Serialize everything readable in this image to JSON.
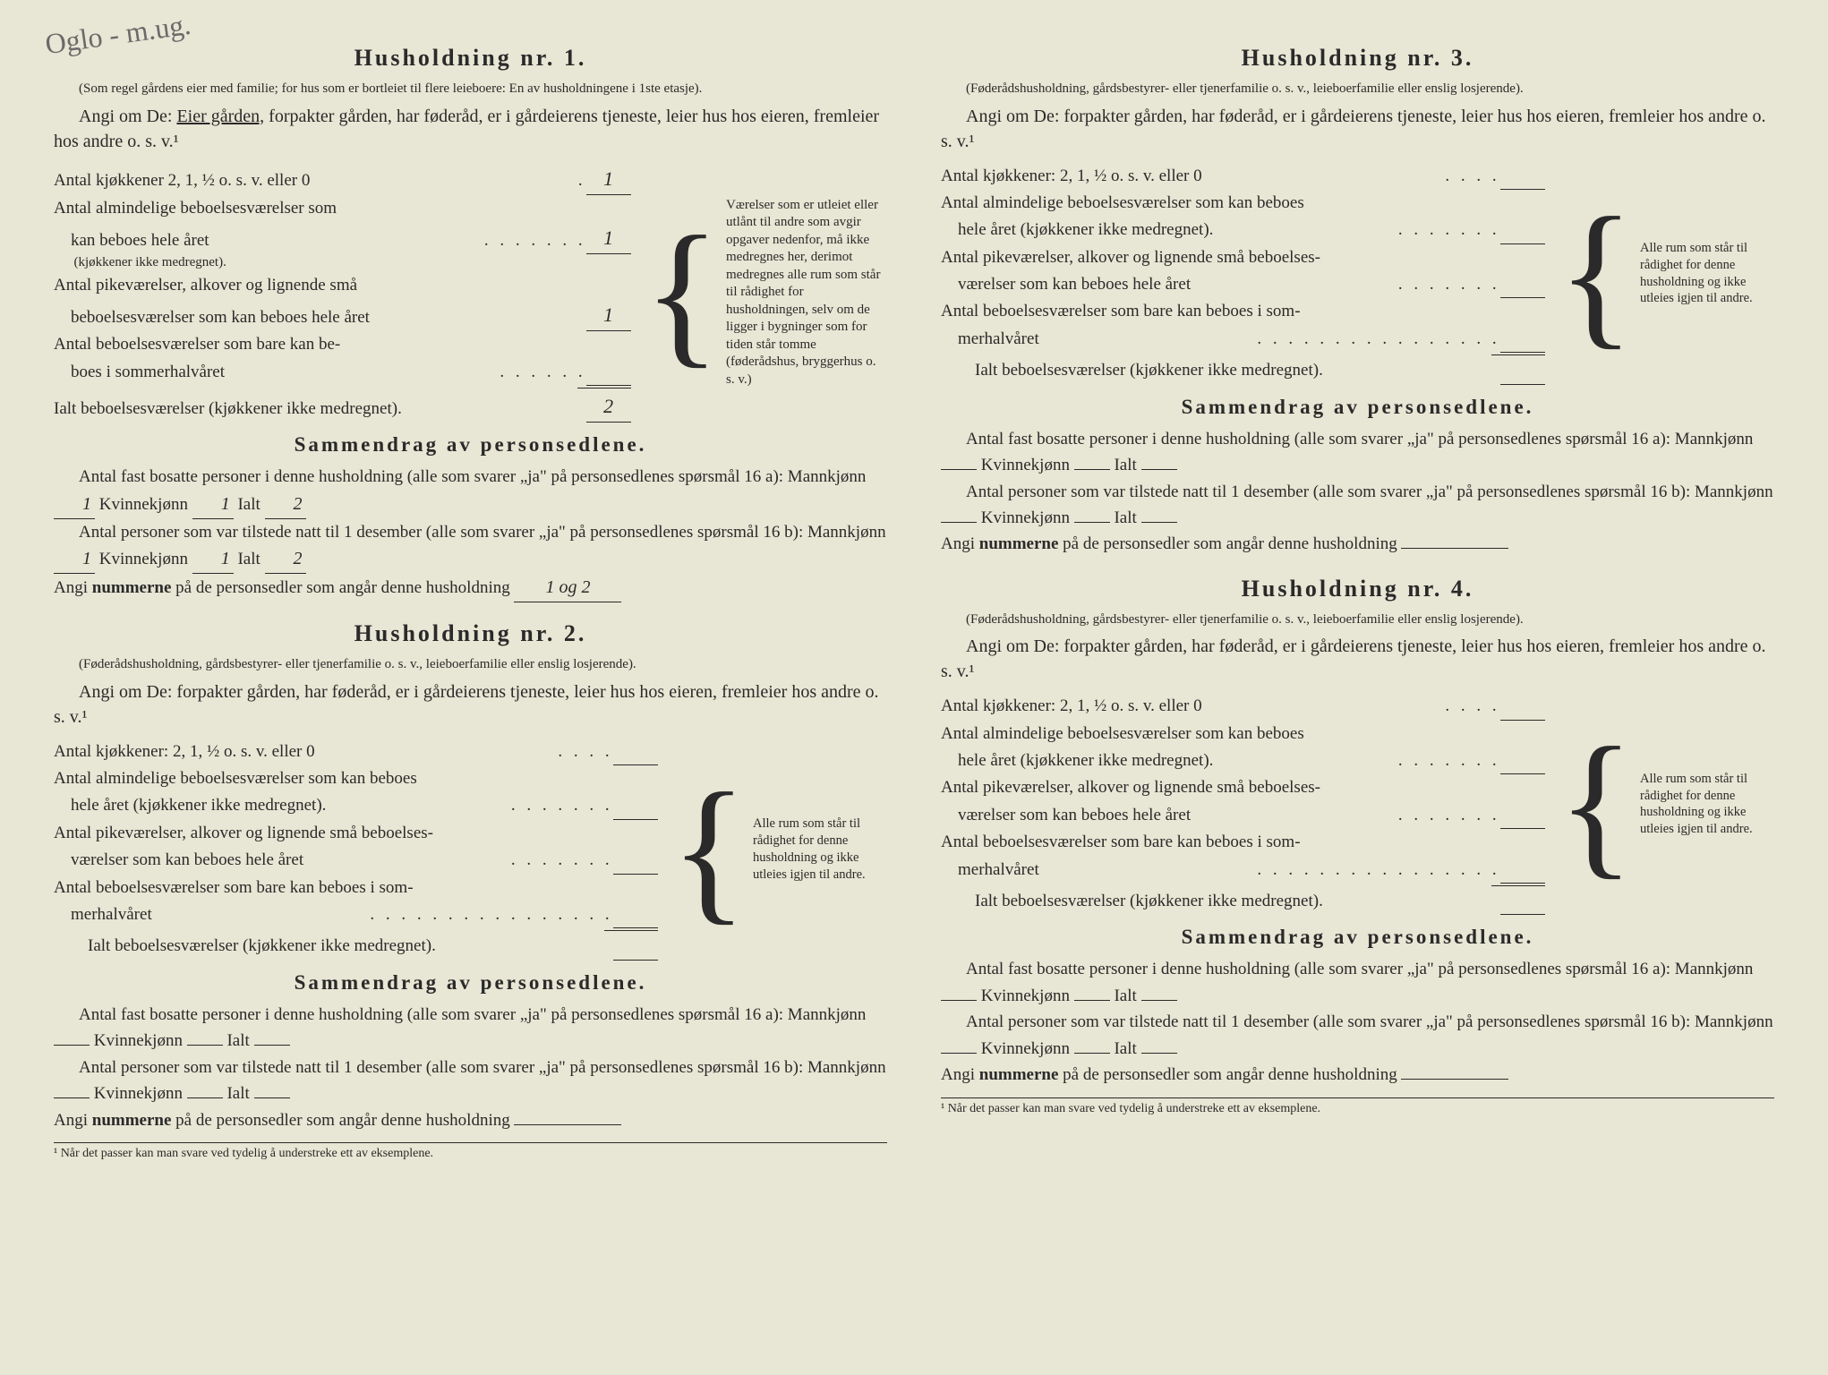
{
  "handwriting_top": "Oglo - m.ug.",
  "footnote": "¹ Når det passer kan man svare ved tydelig å understreke ett av eksemplene.",
  "hh1": {
    "title": "Husholdning nr. 1.",
    "sub": "(Som regel gårdens eier med familie; for hus som er bortleiet til flere leieboere: En av husholdningene i 1ste etasje).",
    "angi": "Angi om De: ",
    "angi_u": "Eier gården,",
    "angi_rest": " forpakter gården, har føderåd, er i gårdeierens tjeneste, leier hus hos eieren, fremleier hos andre o. s. v.¹",
    "l1": "Antal kjøkkener 2, 1, ½ o. s. v. eller 0",
    "v1": "1",
    "l2a": "Antal almindelige beboelsesværelser som",
    "l2b": "kan beboes hele året",
    "l2c": "(kjøkkener ikke medregnet).",
    "v2": "1",
    "l3a": "Antal pikeværelser, alkover og lignende små",
    "l3b": "beboelsesværelser som kan beboes hele året",
    "v3": "1",
    "l4a": "Antal beboelsesværelser som bare kan be-",
    "l4b": "boes i sommerhalvåret",
    "v4": "",
    "l5": "Ialt beboelsesværelser (kjøkkener ikke medregnet).",
    "v5": "2",
    "sidenote": "Værelser som er utleiet eller utlånt til andre som avgir opgaver nedenfor, må ikke medregnes her, derimot medregnes alle rum som står til rådighet for husholdningen, selv om de ligger i bygninger som for tiden står tomme (føderådshus, bryggerhus o. s. v.)",
    "summary_title": "Sammendrag av personsedlene.",
    "s1a": "Antal fast bosatte personer i denne husholdning (alle som svarer „ja\" på personsedlenes spørsmål 16 a): Mannkjønn",
    "s1m": "1",
    "s1k_lbl": "Kvinnekjønn",
    "s1k": "1",
    "s1i_lbl": "Ialt",
    "s1i": "2",
    "s2a": "Antal personer som var tilstede natt til 1 desember (alle som svarer „ja\" på personsedlenes spørsmål 16 b): Mannkjønn",
    "s2m": "1",
    "s2k": "1",
    "s2i": "2",
    "s3": "Angi nummerne på de personsedler som angår denne husholdning",
    "s3v": "1 og 2"
  },
  "hh2": {
    "title": "Husholdning nr. 2.",
    "sub": "(Føderådshusholdning, gårdsbestyrer- eller tjenerfamilie o. s. v., leieboerfamilie eller enslig losjerende).",
    "angi": "Angi om De: forpakter gården, har føderåd, er i gårdeierens tjeneste, leier hus hos eieren, fremleier hos andre o. s. v.¹",
    "l1": "Antal kjøkkener: 2, 1, ½ o. s. v. eller 0",
    "l2a": "Antal almindelige beboelsesværelser som kan beboes",
    "l2b": "hele året (kjøkkener ikke medregnet).",
    "l3a": "Antal pikeværelser, alkover og lignende små beboelses-",
    "l3b": "værelser som kan beboes hele året",
    "l4a": "Antal beboelsesværelser som bare kan beboes i som-",
    "l4b": "merhalvåret",
    "l5": "Ialt beboelsesværelser (kjøkkener ikke medregnet).",
    "sidenote": "Alle rum som står til rådighet for denne husholdning og ikke utleies igjen til andre.",
    "summary_title": "Sammendrag av personsedlene.",
    "s1": "Antal fast bosatte personer i denne husholdning (alle som svarer „ja\" på personsedlenes spørsmål 16 a): Mannkjønn",
    "s2": "Antal personer som var tilstede natt til 1 desember (alle som svarer „ja\" på personsedlenes spørsmål 16 b): Mannkjønn",
    "kv": "Kvinnekjønn",
    "ialt": "Ialt",
    "s3": "Angi nummerne på de personsedler som angår denne husholdning"
  },
  "hh3": {
    "title": "Husholdning nr. 3.",
    "sub": "(Føderådshusholdning, gårdsbestyrer- eller tjenerfamilie o. s. v., leieboerfamilie eller enslig losjerende).",
    "angi": "Angi om De: forpakter gården, har føderåd, er i gårdeierens tjeneste, leier hus hos eieren, fremleier hos andre o. s. v.¹",
    "summary_title": "Sammendrag av personsedlene."
  },
  "hh4": {
    "title": "Husholdning nr. 4.",
    "sub": "(Føderådshusholdning, gårdsbestyrer- eller tjenerfamilie o. s. v., leieboerfamilie eller enslig losjerende).",
    "angi": "Angi om De: forpakter gården, har føderåd, er i gårdeierens tjeneste, leier hus hos eieren, fremleier hos andre o. s. v.¹",
    "summary_title": "Sammendrag av personsedlene."
  }
}
